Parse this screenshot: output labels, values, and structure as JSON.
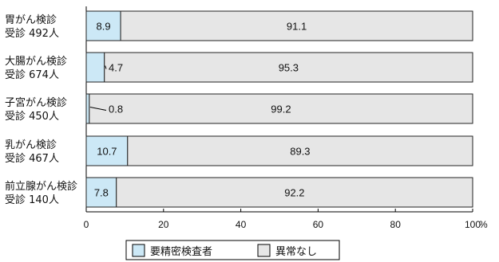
{
  "chart_data": {
    "type": "bar",
    "orientation": "horizontal",
    "stacked": true,
    "categories": [
      [
        "胃がん検診",
        "受診 492人"
      ],
      [
        "大腸がん検診",
        "受診 674人"
      ],
      [
        "子宮がん検診",
        "受診 450人"
      ],
      [
        "乳がん検診",
        "受診 467人"
      ],
      [
        "前立腺がん検診",
        "受診 140人"
      ]
    ],
    "series": [
      {
        "name": "要精密検査者",
        "values": [
          8.9,
          4.7,
          0.8,
          10.7,
          7.8
        ],
        "color": "#cce8f6"
      },
      {
        "name": "異常なし",
        "values": [
          91.1,
          95.3,
          99.2,
          89.3,
          92.2
        ],
        "color": "#e6e6e6"
      }
    ],
    "xlim": [
      0,
      100
    ],
    "xticks": [
      "0",
      "20",
      "40",
      "60",
      "80",
      "100"
    ],
    "xunit": "%",
    "grid": false,
    "legend": "bottom"
  }
}
